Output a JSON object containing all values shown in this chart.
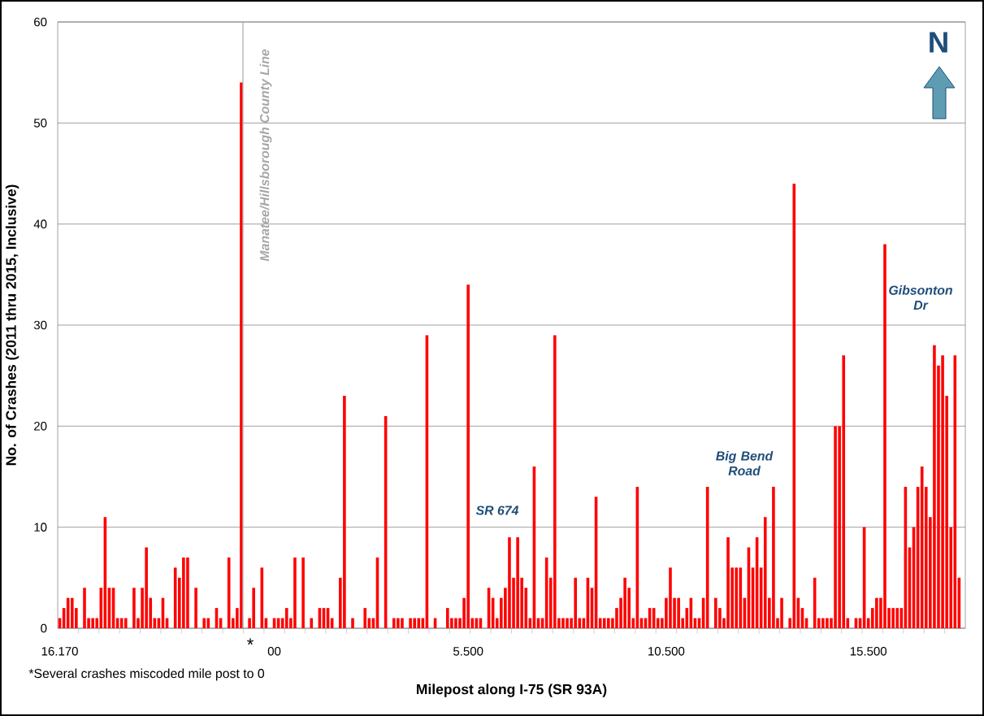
{
  "chart_data": {
    "type": "bar",
    "xlabel": "Milepost along I-75 (SR 93A)",
    "ylabel": "No. of Crashes (2011 thru 2015, Inclusive)",
    "color": "#ff0000",
    "grid": "y",
    "categories": [
      "16.170",
      null,
      null,
      null,
      null,
      null,
      null,
      null,
      null,
      null,
      null,
      null,
      null,
      null,
      null,
      null,
      null,
      null,
      null,
      null,
      null,
      null,
      null,
      null,
      null,
      null,
      null,
      null,
      null,
      null,
      null,
      null,
      null,
      null,
      null,
      null,
      null,
      null,
      null,
      null,
      null,
      null,
      null,
      null,
      null,
      null,
      null,
      null,
      null,
      null,
      null,
      null,
      "00",
      null,
      null,
      null,
      null,
      null,
      null,
      null,
      null,
      null,
      null,
      null,
      null,
      null,
      null,
      null,
      null,
      null,
      null,
      null,
      null,
      null,
      null,
      null,
      null,
      null,
      null,
      null,
      null,
      null,
      null,
      null,
      null,
      null,
      null,
      null,
      null,
      null,
      null,
      null,
      null,
      null,
      null,
      null,
      null,
      null,
      null,
      "5.500",
      null,
      null,
      null,
      null,
      null,
      null,
      null,
      null,
      null,
      null,
      null,
      null,
      null,
      null,
      null,
      null,
      null,
      null,
      null,
      null,
      null,
      null,
      null,
      null,
      null,
      null,
      null,
      null,
      null,
      null,
      null,
      null,
      null,
      null,
      null,
      null,
      null,
      null,
      null,
      null,
      null,
      null,
      null,
      null,
      null,
      null,
      null,
      "10.500",
      null,
      null,
      null,
      null,
      null,
      null,
      null,
      null,
      null,
      null,
      null,
      null,
      null,
      null,
      null,
      null,
      null,
      null,
      null,
      null,
      null,
      null,
      null,
      null,
      null,
      null,
      null,
      null,
      null,
      null,
      null,
      null,
      null,
      null,
      null,
      null,
      null,
      null,
      null,
      null,
      null,
      null,
      null,
      null,
      null,
      null,
      null,
      null,
      "15.500",
      null,
      null,
      null,
      null,
      null,
      null,
      null,
      null,
      null,
      null,
      null,
      null,
      null,
      null,
      null,
      null,
      null,
      null,
      null,
      null,
      null,
      null,
      null
    ],
    "values": [
      1,
      2,
      3,
      3,
      2,
      null,
      4,
      1,
      1,
      1,
      4,
      11,
      4,
      4,
      1,
      1,
      1,
      null,
      4,
      1,
      4,
      8,
      3,
      1,
      1,
      3,
      1,
      null,
      6,
      5,
      7,
      7,
      null,
      4,
      null,
      1,
      1,
      null,
      2,
      1,
      null,
      7,
      1,
      2,
      54,
      null,
      1,
      4,
      null,
      6,
      1,
      null,
      1,
      1,
      1,
      2,
      1,
      7,
      null,
      7,
      null,
      1,
      null,
      2,
      2,
      2,
      1,
      null,
      5,
      23,
      null,
      1,
      null,
      null,
      2,
      1,
      1,
      7,
      null,
      21,
      null,
      1,
      1,
      1,
      null,
      1,
      1,
      1,
      1,
      29,
      null,
      1,
      null,
      null,
      2,
      1,
      1,
      1,
      3,
      34,
      1,
      1,
      1,
      null,
      4,
      3,
      1,
      3,
      4,
      9,
      5,
      9,
      5,
      4,
      1,
      16,
      1,
      1,
      7,
      5,
      29,
      1,
      1,
      1,
      1,
      5,
      1,
      1,
      5,
      4,
      13,
      1,
      1,
      1,
      1,
      2,
      3,
      5,
      4,
      1,
      14,
      1,
      1,
      2,
      2,
      1,
      1,
      3,
      6,
      3,
      3,
      1,
      2,
      3,
      1,
      1,
      3,
      14,
      null,
      3,
      2,
      1,
      9,
      6,
      6,
      6,
      3,
      8,
      6,
      9,
      6,
      11,
      3,
      14,
      1,
      3,
      null,
      1,
      44,
      3,
      2,
      1,
      null,
      5,
      1,
      1,
      1,
      1,
      20,
      20,
      27,
      1,
      null,
      1,
      1,
      10,
      1,
      2,
      3,
      3,
      38,
      2,
      2,
      2,
      2,
      14,
      8,
      10,
      14,
      16,
      14,
      11,
      28,
      26,
      27,
      23,
      10,
      27,
      5,
      null
    ],
    "ylim": [
      0,
      60
    ],
    "yticks": [
      0,
      10,
      20,
      30,
      40,
      50,
      60
    ],
    "annotations": [
      "Manatee/Hillsborough County Line",
      "*",
      "*Several crashes miscoded mile post to 0",
      "SR 674",
      "Big Bend Road",
      "Gibsonton Dr",
      "N"
    ]
  }
}
